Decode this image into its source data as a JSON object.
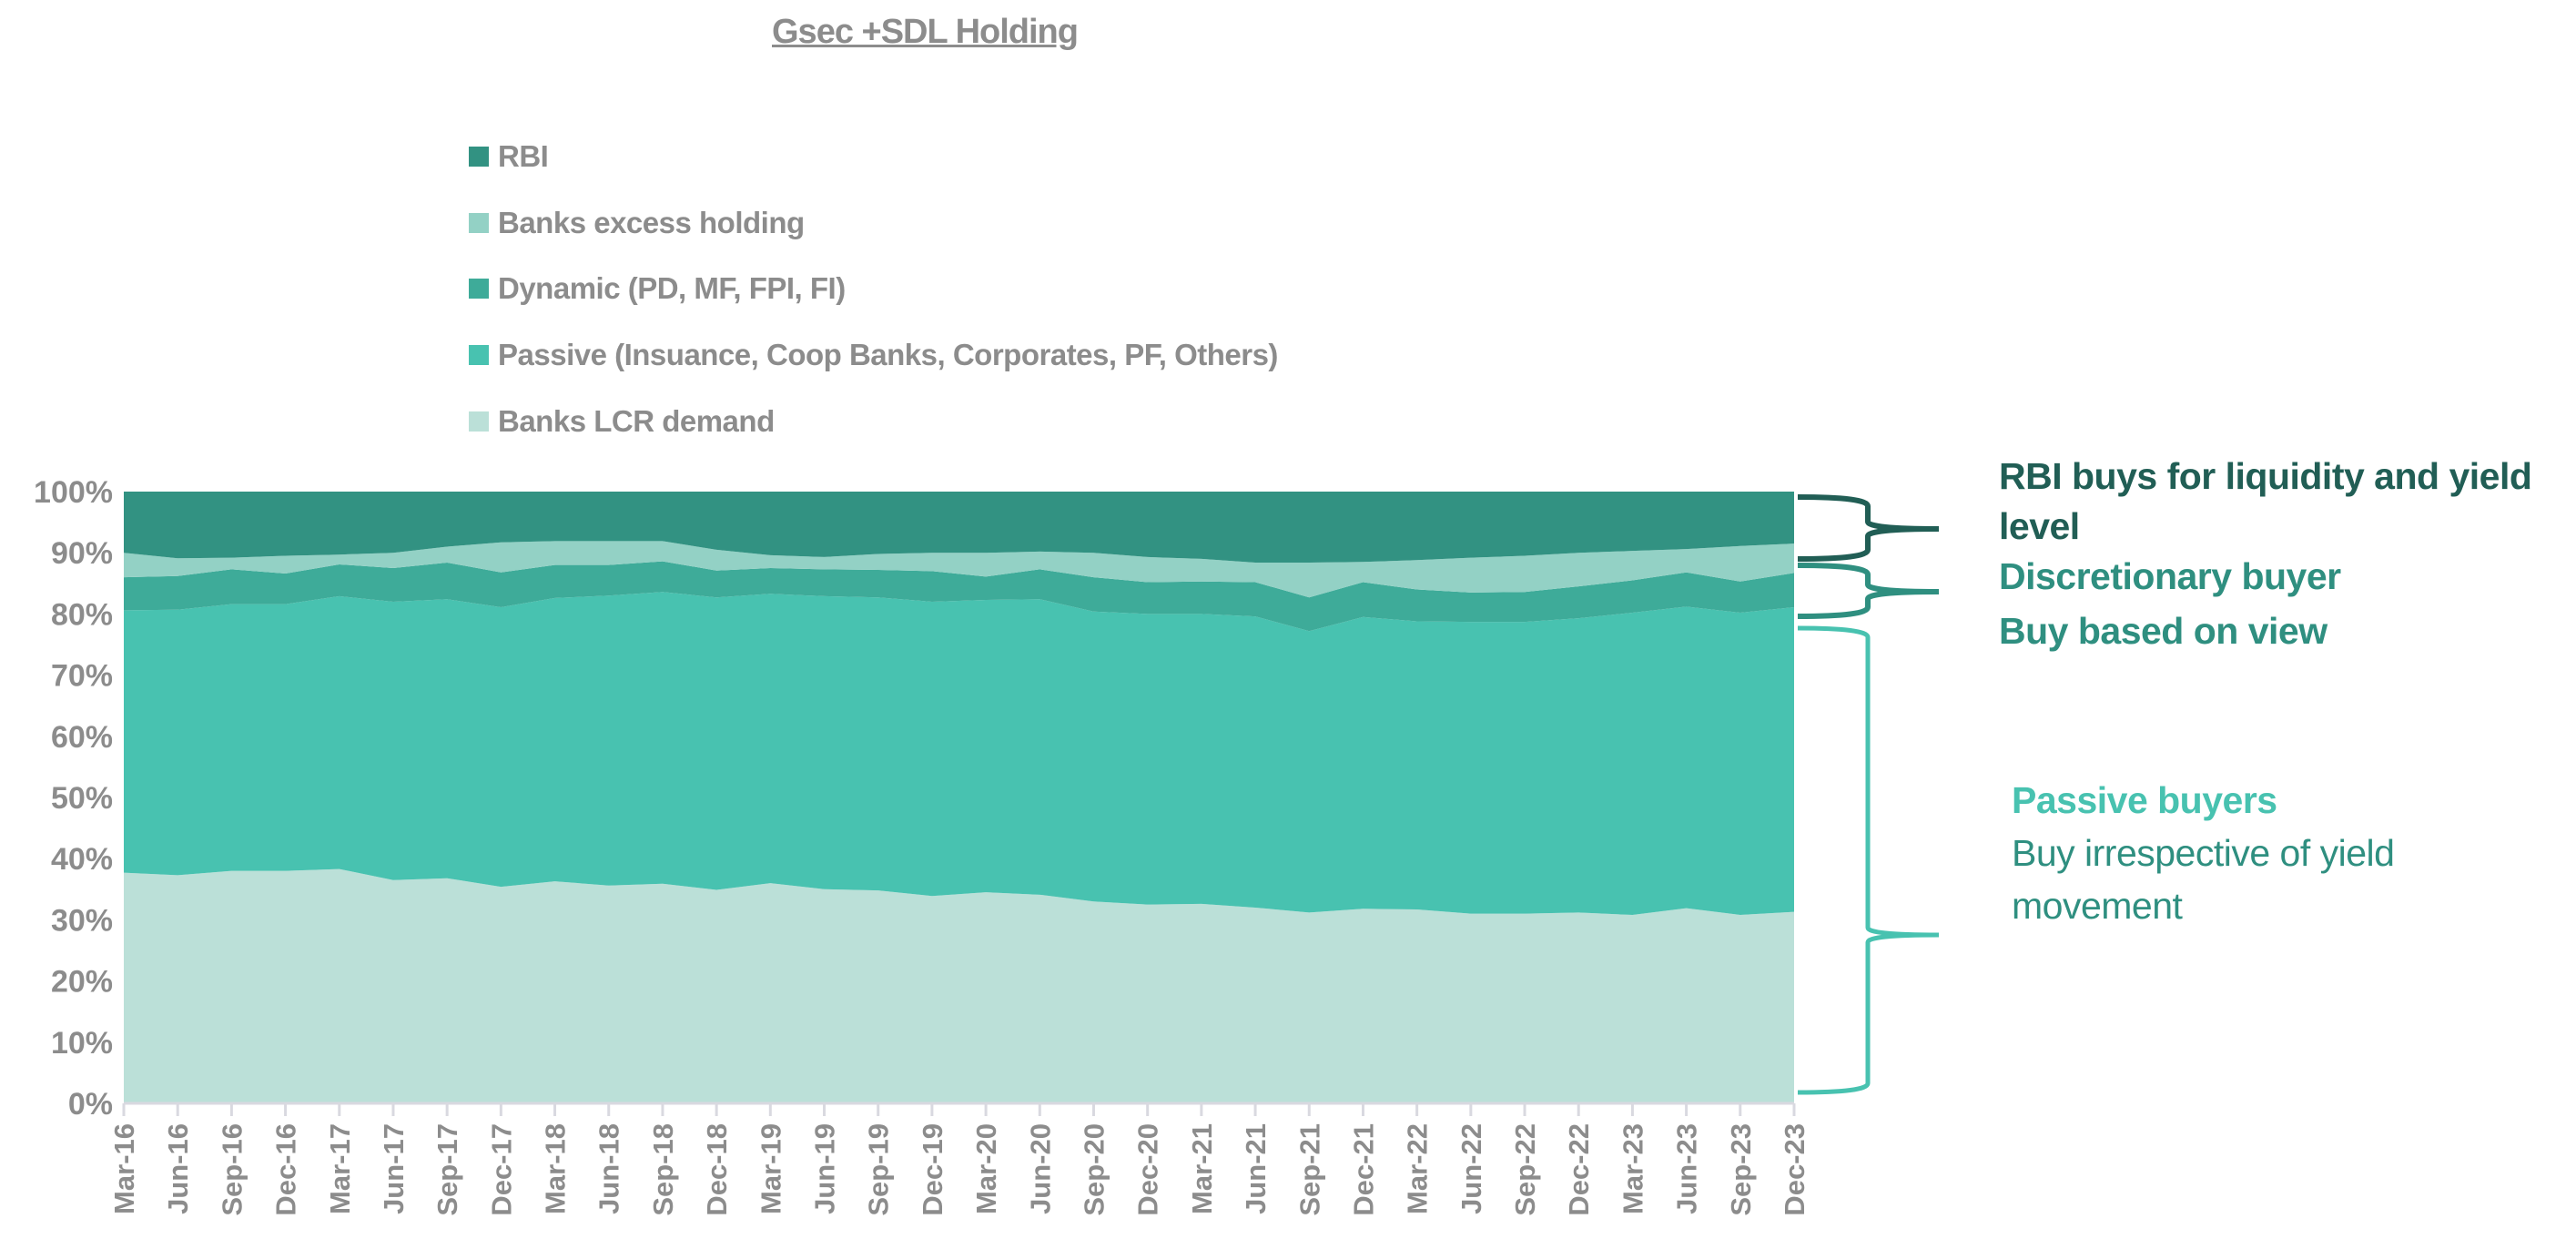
{
  "chart_data": {
    "type": "area",
    "stacked": true,
    "title": "Gsec +SDL Holding",
    "categories": [
      "Mar-16",
      "Jun-16",
      "Sep-16",
      "Dec-16",
      "Mar-17",
      "Jun-17",
      "Sep-17",
      "Dec-17",
      "Mar-18",
      "Jun-18",
      "Sep-18",
      "Dec-18",
      "Mar-19",
      "Jun-19",
      "Sep-19",
      "Dec-19",
      "Mar-20",
      "Jun-20",
      "Sep-20",
      "Dec-20",
      "Mar-21",
      "Jun-21",
      "Sep-21",
      "Dec-21",
      "Mar-22",
      "Jun-22",
      "Sep-22",
      "Dec-22",
      "Mar-23",
      "Jun-23",
      "Sep-23",
      "Dec-23"
    ],
    "ylim": [
      0,
      100
    ],
    "y_ticks": [
      "0%",
      "10%",
      "20%",
      "30%",
      "40%",
      "50%",
      "60%",
      "70%",
      "80%",
      "90%",
      "100%"
    ],
    "grid": false,
    "legend_placement": "top",
    "series": [
      {
        "name": "Banks LCR demand",
        "color": "#bbe0d8",
        "values": [
          37.7,
          37.3,
          38.0,
          38.0,
          38.3,
          36.5,
          36.8,
          35.4,
          36.3,
          35.6,
          35.9,
          34.9,
          36.0,
          35.0,
          34.8,
          33.9,
          34.5,
          34.1,
          33.0,
          32.5,
          32.6,
          32.0,
          31.2,
          31.8,
          31.7,
          31.0,
          31.0,
          31.2,
          30.8,
          31.9,
          30.8,
          31.3
        ]
      },
      {
        "name": "Passive (Insuance, Coop Banks, Corporates, PF, Others)",
        "color": "#48c2b0",
        "values": [
          42.9,
          43.4,
          43.6,
          43.6,
          44.6,
          45.5,
          45.6,
          45.7,
          46.3,
          47.4,
          47.7,
          47.8,
          47.3,
          47.9,
          47.9,
          48.1,
          47.8,
          48.3,
          47.4,
          47.5,
          47.4,
          47.6,
          46.0,
          47.7,
          47.1,
          47.7,
          47.7,
          48.1,
          49.4,
          49.3,
          49.4,
          49.8
        ]
      },
      {
        "name": "Dynamic (PD, MF, FPI, FI)",
        "color": "#3eab99",
        "values": [
          5.4,
          5.5,
          5.7,
          5.0,
          5.2,
          5.5,
          6.0,
          5.7,
          5.4,
          5.0,
          5.0,
          4.4,
          4.2,
          4.4,
          4.5,
          5.0,
          3.8,
          4.9,
          5.6,
          5.2,
          5.3,
          5.6,
          5.5,
          5.7,
          5.2,
          4.8,
          4.9,
          5.2,
          5.3,
          5.6,
          5.1,
          5.6
        ]
      },
      {
        "name": "Banks excess holding",
        "color": "#93d1c5",
        "values": [
          4.0,
          2.9,
          1.9,
          2.9,
          1.6,
          2.5,
          2.6,
          4.9,
          3.9,
          3.9,
          3.3,
          3.4,
          2.1,
          2.0,
          2.6,
          3.0,
          3.9,
          2.9,
          4.0,
          4.1,
          3.7,
          3.2,
          5.7,
          3.3,
          4.8,
          5.7,
          5.9,
          5.5,
          4.8,
          3.8,
          5.8,
          4.8
        ]
      },
      {
        "name": "RBI",
        "color": "#329282",
        "values": [
          10.0,
          10.9,
          10.8,
          10.5,
          10.3,
          10.0,
          9.0,
          8.3,
          8.1,
          8.1,
          8.1,
          9.5,
          10.4,
          10.7,
          10.2,
          10.0,
          10.0,
          9.8,
          10.0,
          10.7,
          11.0,
          11.6,
          11.6,
          11.5,
          11.2,
          10.8,
          10.5,
          10.0,
          9.7,
          9.4,
          8.9,
          8.5
        ]
      }
    ],
    "legend_order": [
      "RBI",
      "Banks excess holding",
      "Dynamic (PD, MF, FPI, FI)",
      "Passive (Insuance, Coop Banks, Corporates, PF, Others)",
      "Banks LCR demand"
    ],
    "annotations": {
      "rbi": {
        "lines": [
          "RBI buys for liquidity and yield",
          "level"
        ],
        "color": "#215e55"
      },
      "discretionary": {
        "lines": [
          "Discretionary buyer",
          "Buy based on view"
        ],
        "color": "#2f8f80"
      },
      "passive": {
        "heading": "Passive buyers",
        "lines": [
          "Buy irrespective of yield",
          "movement"
        ],
        "heading_color": "#48c2b0",
        "color": "#2f8f80"
      }
    }
  }
}
